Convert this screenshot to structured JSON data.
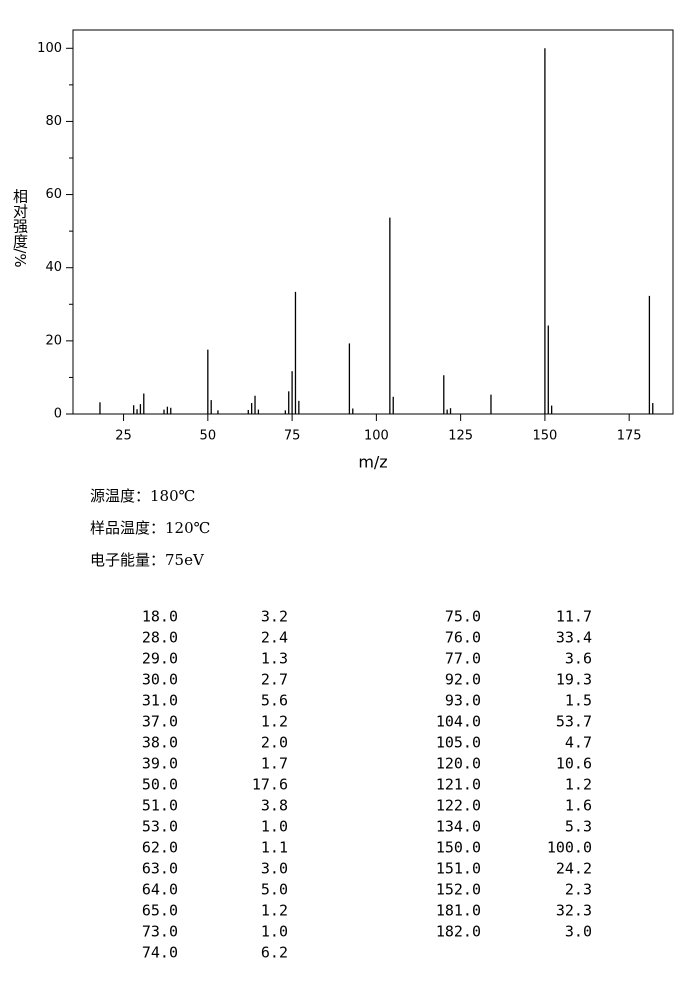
{
  "chart_data": {
    "type": "bar",
    "x_label": "m/z",
    "y_label": "相对强度/%",
    "x": [
      18,
      28,
      29,
      30,
      31,
      37,
      38,
      39,
      50,
      51,
      53,
      62,
      63,
      64,
      65,
      73,
      74,
      75,
      76,
      77,
      92,
      93,
      104,
      105,
      120,
      121,
      122,
      134,
      150,
      151,
      152,
      181,
      182
    ],
    "values": [
      3.2,
      2.4,
      1.3,
      2.7,
      5.6,
      1.2,
      2.0,
      1.7,
      17.6,
      3.8,
      1.0,
      1.1,
      3.0,
      5.0,
      1.2,
      1.0,
      6.2,
      11.7,
      33.4,
      3.6,
      19.3,
      1.5,
      53.7,
      4.7,
      10.6,
      1.2,
      1.6,
      5.3,
      100.0,
      24.2,
      2.3,
      32.3,
      3.0
    ],
    "color": "#000000",
    "xlim": [
      10,
      188
    ],
    "xticks": [
      25,
      50,
      75,
      100,
      125,
      150,
      175
    ],
    "ylim": [
      0,
      105
    ],
    "yticks": [
      0,
      20,
      40,
      60,
      80,
      100
    ],
    "yminorticks": [
      10,
      30,
      50,
      70,
      90
    ]
  },
  "info": [
    "源温度：180℃",
    "样品温度：120℃",
    "电子能量：75eV"
  ],
  "peak_table": {
    "left": [
      [
        "18.0",
        "3.2"
      ],
      [
        "28.0",
        "2.4"
      ],
      [
        "29.0",
        "1.3"
      ],
      [
        "30.0",
        "2.7"
      ],
      [
        "31.0",
        "5.6"
      ],
      [
        "37.0",
        "1.2"
      ],
      [
        "38.0",
        "2.0"
      ],
      [
        "39.0",
        "1.7"
      ],
      [
        "50.0",
        "17.6"
      ],
      [
        "51.0",
        "3.8"
      ],
      [
        "53.0",
        "1.0"
      ],
      [
        "62.0",
        "1.1"
      ],
      [
        "63.0",
        "3.0"
      ],
      [
        "64.0",
        "5.0"
      ],
      [
        "65.0",
        "1.2"
      ],
      [
        "73.0",
        "1.0"
      ],
      [
        "74.0",
        "6.2"
      ]
    ],
    "right": [
      [
        "75.0",
        "11.7"
      ],
      [
        "76.0",
        "33.4"
      ],
      [
        "77.0",
        "3.6"
      ],
      [
        "92.0",
        "19.3"
      ],
      [
        "93.0",
        "1.5"
      ],
      [
        "104.0",
        "53.7"
      ],
      [
        "105.0",
        "4.7"
      ],
      [
        "120.0",
        "10.6"
      ],
      [
        "121.0",
        "1.2"
      ],
      [
        "122.0",
        "1.6"
      ],
      [
        "134.0",
        "5.3"
      ],
      [
        "150.0",
        "100.0"
      ],
      [
        "151.0",
        "24.2"
      ],
      [
        "152.0",
        "2.3"
      ],
      [
        "181.0",
        "32.3"
      ],
      [
        "182.0",
        "3.0"
      ]
    ]
  }
}
